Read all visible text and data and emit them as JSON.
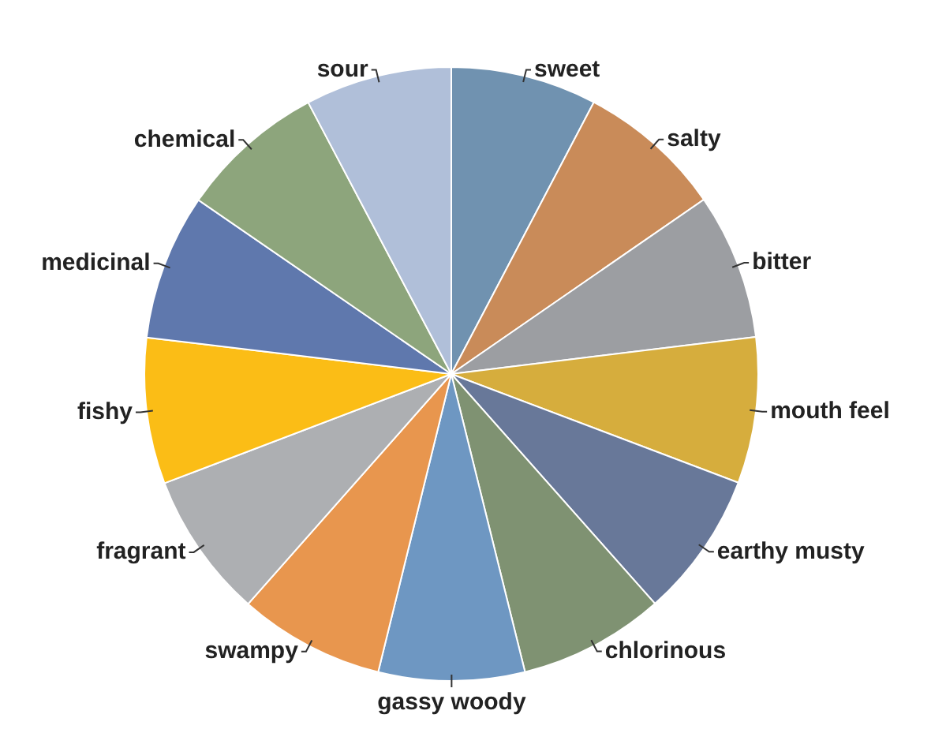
{
  "chart_data": {
    "type": "pie",
    "categories": [
      "sweet",
      "salty",
      "bitter",
      "mouth feel",
      "earthy musty",
      "chlorinous",
      "gassy woody",
      "swampy",
      "fragrant",
      "fishy",
      "medicinal",
      "chemical",
      "sour"
    ],
    "values": [
      7.69,
      7.69,
      7.69,
      7.69,
      7.69,
      7.69,
      7.69,
      7.69,
      7.69,
      7.69,
      7.69,
      7.69,
      7.72
    ],
    "colors": [
      "#7092b0",
      "#c98b59",
      "#9c9ea2",
      "#d6ad3d",
      "#687899",
      "#7f9272",
      "#6e97c2",
      "#e8964e",
      "#adafb2",
      "#fbbd16",
      "#5f78ad",
      "#8da57c",
      "#b0bfd9"
    ],
    "legend": false
  }
}
